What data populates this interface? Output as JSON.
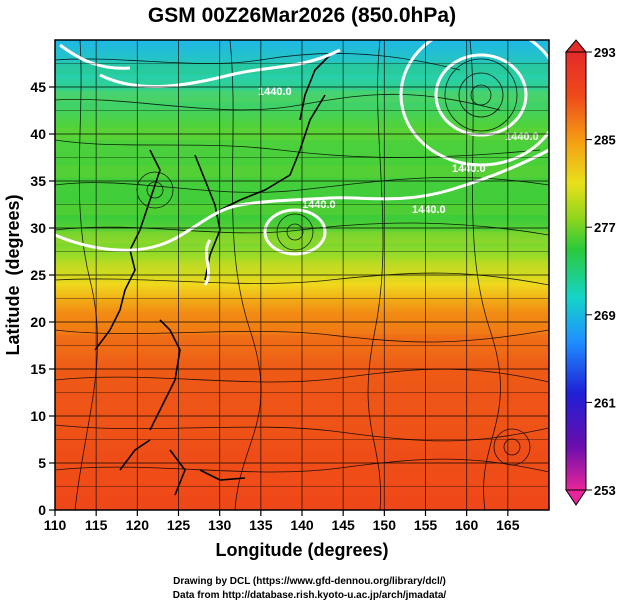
{
  "chart_data": {
    "type": "heatmap",
    "title": "GSM 00Z26Mar2026 (850.0hPa)",
    "xlabel": "Longitude (degrees)",
    "ylabel": "Latitude  (degrees)",
    "xlim": [
      110,
      170
    ],
    "ylim": [
      0,
      50
    ],
    "x_ticks": [
      110,
      115,
      120,
      125,
      130,
      135,
      140,
      145,
      150,
      155,
      160,
      165
    ],
    "y_ticks": [
      0,
      5,
      10,
      15,
      20,
      25,
      30,
      35,
      40,
      45
    ],
    "colorbar": {
      "min": 253,
      "max": 293,
      "ticks": [
        293,
        285,
        277,
        269,
        261,
        253
      ],
      "colors": [
        "#e8259a",
        "#6a0dad",
        "#1f1fd6",
        "#1e90ff",
        "#14d4c8",
        "#2bc93a",
        "#8fd61c",
        "#e8e01a",
        "#f59b13",
        "#ee4a1a",
        "#e52a2a"
      ]
    },
    "temperature_rows": [
      {
        "lat": 47,
        "value": 274
      },
      {
        "lat": 44,
        "value": 278
      },
      {
        "lat": 40,
        "value": 279
      },
      {
        "lat": 36,
        "value": 278
      },
      {
        "lat": 32,
        "value": 278
      },
      {
        "lat": 29,
        "value": 280
      },
      {
        "lat": 26,
        "value": 283
      },
      {
        "lat": 22,
        "value": 286
      },
      {
        "lat": 18,
        "value": 288
      },
      {
        "lat": 12,
        "value": 290
      },
      {
        "lat": 6,
        "value": 290
      },
      {
        "lat": 1,
        "value": 290
      }
    ],
    "contour_labels": [
      "1440.0",
      "1440.0",
      "1440.0",
      "1440.0",
      "1440.0"
    ],
    "credits": [
      "Drawing by DCL (https://www.gfd-dennou.org/library/dcl/)",
      "Data from http://database.rish.kyoto-u.ac.jp/arch/jmadata/"
    ]
  }
}
